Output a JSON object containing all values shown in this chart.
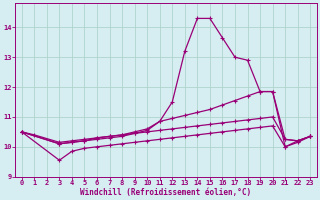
{
  "xlabel": "Windchill (Refroidissement éolien,°C)",
  "xlim": [
    -0.5,
    23.5
  ],
  "ylim": [
    9.0,
    14.8
  ],
  "xticks": [
    0,
    1,
    2,
    3,
    4,
    5,
    6,
    7,
    8,
    9,
    10,
    11,
    12,
    13,
    14,
    15,
    16,
    17,
    18,
    19,
    20,
    21,
    22,
    23
  ],
  "yticks": [
    9,
    10,
    11,
    12,
    13,
    14
  ],
  "background_color": "#d6eef2",
  "grid_color": "#b0d4cc",
  "line_color": "#990077",
  "series": [
    {
      "x": [
        0,
        1,
        3,
        4,
        5,
        6,
        7,
        8,
        9,
        10,
        11,
        12,
        13,
        14,
        15,
        16,
        17,
        18,
        19,
        20,
        21,
        22,
        23
      ],
      "y": [
        10.5,
        10.4,
        10.15,
        10.2,
        10.25,
        10.3,
        10.35,
        10.4,
        10.45,
        10.5,
        10.55,
        10.6,
        10.65,
        10.7,
        10.75,
        10.8,
        10.85,
        10.9,
        10.95,
        11.0,
        10.25,
        10.2,
        10.35
      ]
    },
    {
      "x": [
        0,
        3,
        4,
        5,
        6,
        7,
        8,
        9,
        10,
        11,
        12,
        13,
        14,
        15,
        16,
        17,
        18,
        19,
        20,
        21,
        22,
        23
      ],
      "y": [
        10.5,
        9.55,
        9.85,
        9.95,
        10.0,
        10.05,
        10.1,
        10.15,
        10.2,
        10.25,
        10.3,
        10.35,
        10.4,
        10.45,
        10.5,
        10.55,
        10.6,
        10.65,
        10.7,
        10.0,
        10.15,
        10.35
      ]
    },
    {
      "x": [
        0,
        3,
        4,
        5,
        6,
        7,
        8,
        9,
        10,
        11,
        12,
        13,
        14,
        15,
        16,
        17,
        18,
        19,
        20,
        21,
        22,
        23
      ],
      "y": [
        10.5,
        10.1,
        10.15,
        10.2,
        10.25,
        10.3,
        10.35,
        10.45,
        10.55,
        10.85,
        11.5,
        13.2,
        14.3,
        14.3,
        13.65,
        13.0,
        12.9,
        11.85,
        11.85,
        10.0,
        10.2,
        10.35
      ]
    },
    {
      "x": [
        0,
        3,
        4,
        5,
        6,
        7,
        8,
        9,
        10,
        11,
        12,
        13,
        14,
        15,
        16,
        17,
        18,
        19,
        20,
        21,
        22,
        23
      ],
      "y": [
        10.5,
        10.1,
        10.15,
        10.2,
        10.3,
        10.35,
        10.4,
        10.5,
        10.6,
        10.85,
        10.95,
        11.05,
        11.15,
        11.25,
        11.4,
        11.55,
        11.7,
        11.85,
        11.85,
        10.25,
        10.2,
        10.35
      ]
    }
  ]
}
